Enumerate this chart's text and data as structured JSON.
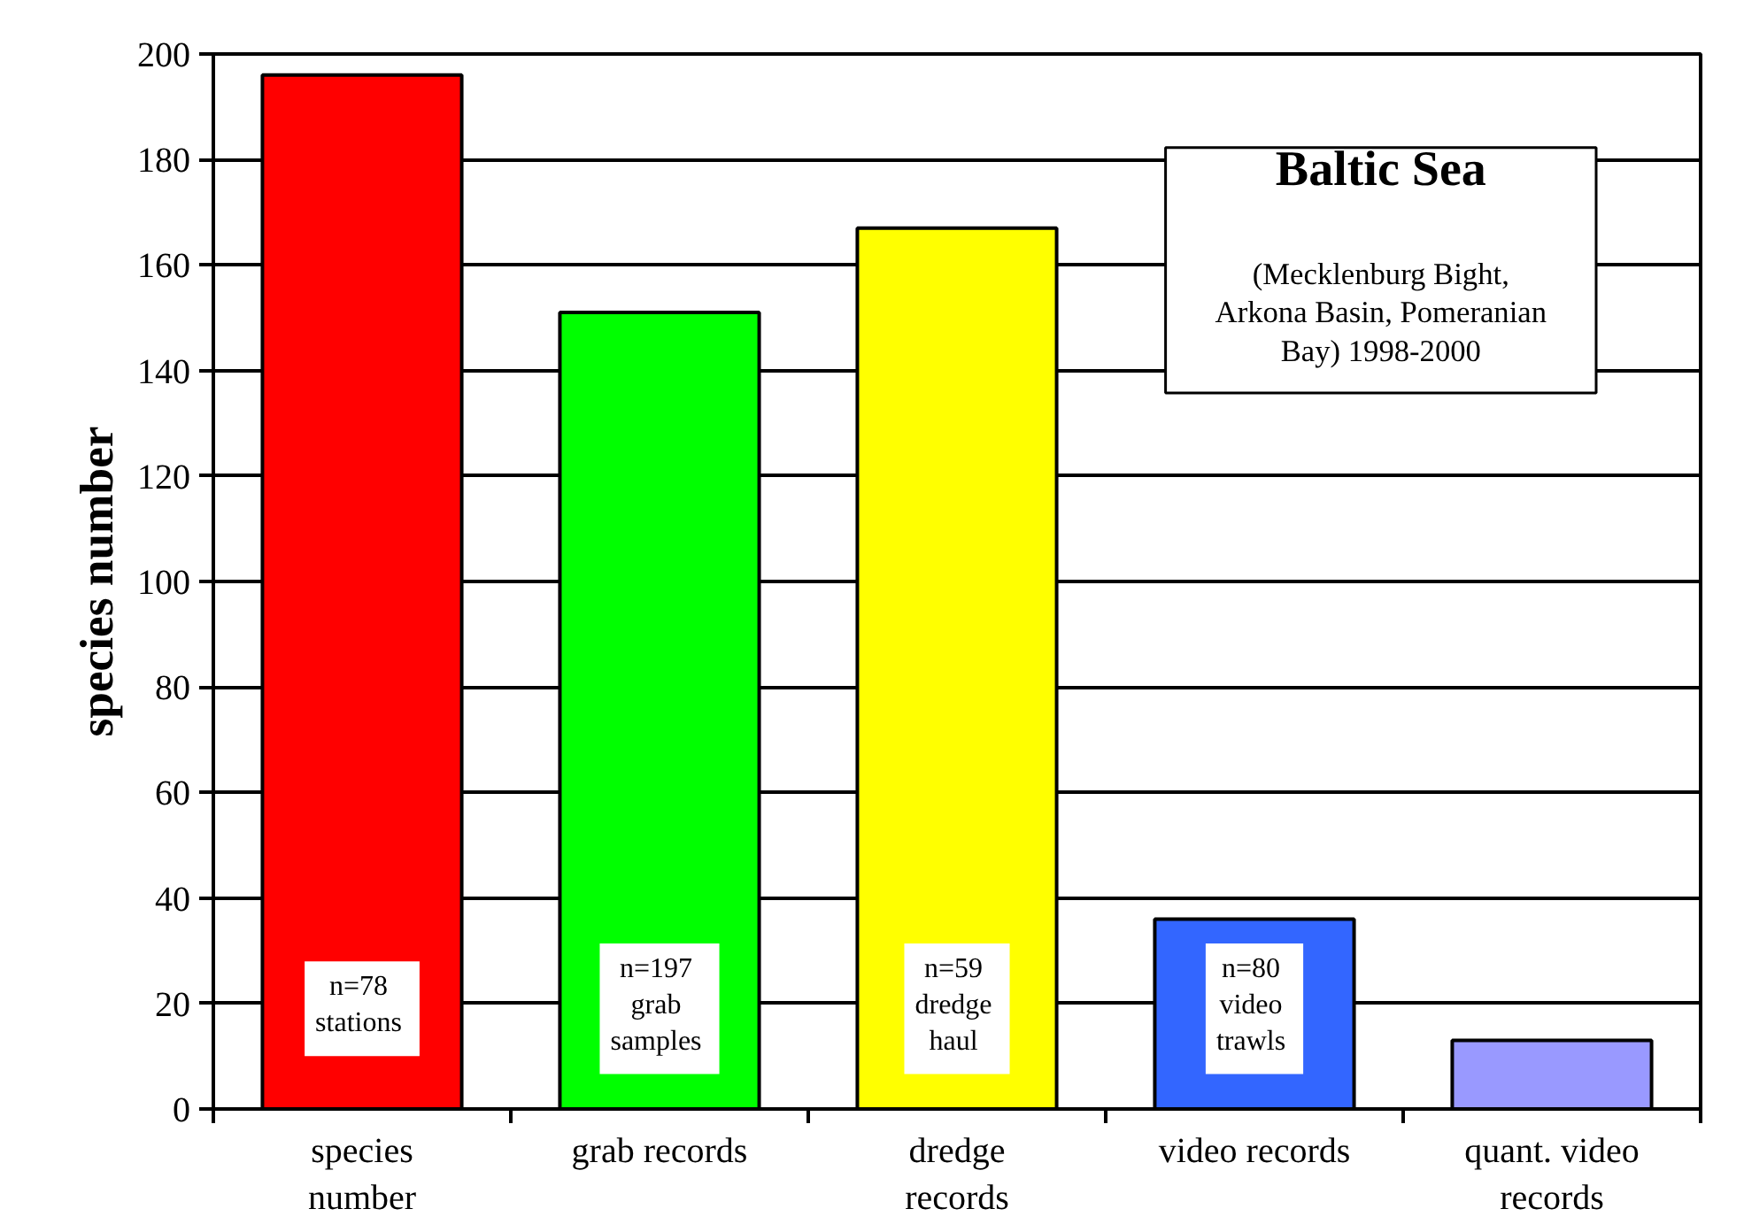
{
  "chart_data": {
    "type": "bar",
    "title": "Baltic Sea",
    "subtitle": "(Mecklenburg Bight, Arkona Basin, Pomeranian Bay) 1998-2000",
    "ylabel": "species number",
    "categories": [
      "species number",
      "grab records",
      "dredge records",
      "video records",
      "quant. video records"
    ],
    "values": [
      196,
      151,
      167,
      36,
      13
    ],
    "colors": [
      "#ff0000",
      "#00ff00",
      "#ffff00",
      "#3366ff",
      "#9999ff"
    ],
    "ylim": [
      0,
      200
    ],
    "yticks": [
      0,
      20,
      40,
      60,
      80,
      100,
      120,
      140,
      160,
      180,
      200
    ],
    "grid": "y",
    "annotations": [
      "n=78\nstations",
      "n=197\ngrab\nsamples",
      "n=59\ndredge\nhaul",
      "n=80\nvideo\ntrawls"
    ]
  }
}
